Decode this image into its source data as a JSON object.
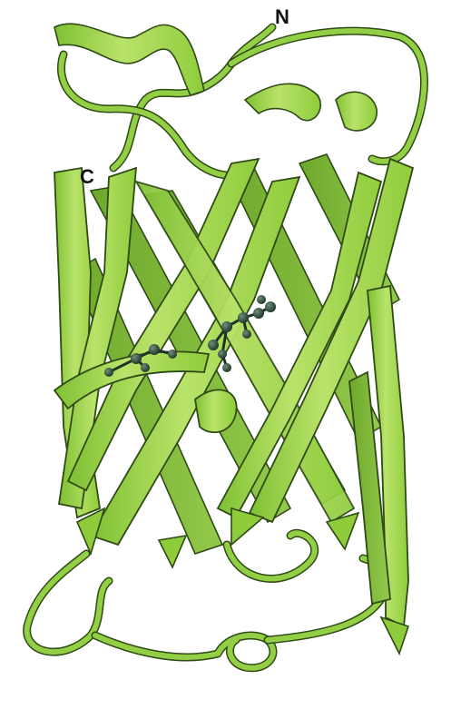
{
  "terminal_labels": {
    "n": "N",
    "c": "C"
  },
  "colors": {
    "ribbon_light": "#b9e36a",
    "ribbon_mid": "#8fcc3c",
    "ribbon_dark": "#5a9a22",
    "outline": "#2f4a16",
    "chromophore": "#2f4b3b",
    "background": "#ffffff"
  }
}
